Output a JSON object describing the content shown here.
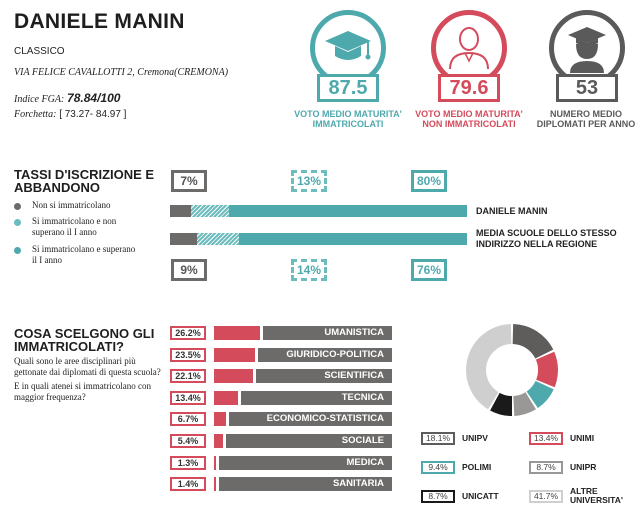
{
  "school": {
    "name": "DANIELE MANIN",
    "type": "CLASSICO",
    "address": "VIA FELICE CAVALLOTTI 2, Cremona(CREMONA)",
    "fga_label": "Indice FGA:",
    "fga_value": "78.84/100",
    "forchetta_label": "Forchetta:",
    "forchetta_value": "[ 73.27- 84.97 ]"
  },
  "kpis": [
    {
      "value": "87.5",
      "label": "VOTO MEDIO MATURITA' IMMATRICOLATI",
      "color": "#4ea9ad",
      "icon": "graduation-cap-icon"
    },
    {
      "value": "79.6",
      "label": "VOTO MEDIO MATURITA' NON IMMATRICOLATI",
      "color": "#d44b5c",
      "icon": "person-icon"
    },
    {
      "value": "53",
      "label": "NUMERO MEDIO DIPLOMATI PER ANNO",
      "color": "#5a5a5a",
      "icon": "graduate-icon"
    }
  ],
  "iscrizione": {
    "title_line1": "TASSI D'ISCRIZIONE E",
    "title_line2": "ABBANDONO",
    "legend": [
      {
        "label": "Non si immatricolano",
        "color": "#6d6b6a"
      },
      {
        "label": "Si immatricolano e non superano il I anno",
        "color": "#6dbdbe"
      },
      {
        "label": "Si immatricolano e superano il I anno",
        "color": "#4ea9ad"
      }
    ],
    "school_label": "DANIELE MANIN",
    "region_label": "MEDIA SCUOLE DELLO STESSO INDIRIZZO NELLA REGIONE",
    "school_pcts": [
      "7%",
      "13%",
      "80%"
    ],
    "region_pcts": [
      "9%",
      "14%",
      "76%"
    ],
    "school_values": [
      7,
      13,
      80
    ],
    "region_values": [
      9,
      14,
      76
    ]
  },
  "scelte": {
    "title_line1": "COSA SCELGONO GLI",
    "title_line2": "IMMATRICOLATI?",
    "question1": "Quali sono le aree disciplinari più gettonate dai diplomati di questa scuola?",
    "question2": "E in quali atenei si immatricolano con maggior frequenza?",
    "subjects": [
      {
        "pct": "26.2%",
        "value": 26.2,
        "label": "UMANISTICA"
      },
      {
        "pct": "23.5%",
        "value": 23.5,
        "label": "GIURIDICO-POLITICA"
      },
      {
        "pct": "22.1%",
        "value": 22.1,
        "label": "SCIENTIFICA"
      },
      {
        "pct": "13.4%",
        "value": 13.4,
        "label": "TECNICA"
      },
      {
        "pct": "6.7%",
        "value": 6.7,
        "label": "ECONOMICO-STATISTICA"
      },
      {
        "pct": "5.4%",
        "value": 5.4,
        "label": "SOCIALE"
      },
      {
        "pct": "1.3%",
        "value": 1.3,
        "label": "MEDICA"
      },
      {
        "pct": "1.4%",
        "value": 1.4,
        "label": "SANITARIA"
      }
    ],
    "universities": [
      {
        "pct": "18.1%",
        "value": 18.1,
        "name": "UNIPV",
        "color": "#5f5d5c"
      },
      {
        "pct": "13.4%",
        "value": 13.4,
        "name": "UNIMI",
        "color": "#d44b5c"
      },
      {
        "pct": "9.4%",
        "value": 9.4,
        "name": "POLIMI",
        "color": "#4ea9ad"
      },
      {
        "pct": "8.7%",
        "value": 8.7,
        "name": "UNIPR",
        "color": "#9a9897"
      },
      {
        "pct": "8.7%",
        "value": 8.7,
        "name": "UNICATT",
        "color": "#1a1a1a"
      },
      {
        "pct": "41.7%",
        "value": 41.7,
        "name": "ALTRE UNIVERSITA'",
        "color": "#cfcfcf"
      }
    ]
  }
}
